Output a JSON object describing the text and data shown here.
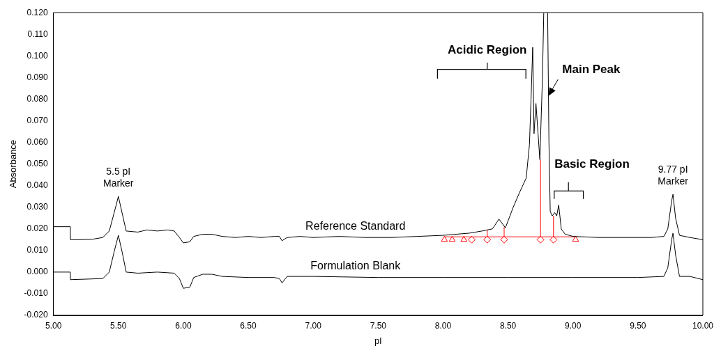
{
  "chart_data": {
    "type": "line",
    "xlabel": "pI",
    "ylabel": "Absorbance",
    "xlim": [
      5.0,
      10.0
    ],
    "xticks": [
      {
        "value": 5,
        "label": "5.00"
      },
      {
        "value": 5.5,
        "label": "5.50"
      },
      {
        "value": 6,
        "label": "6.00"
      },
      {
        "value": 6.5,
        "label": "6.50"
      },
      {
        "value": 7,
        "label": "7.00"
      },
      {
        "value": 7.5,
        "label": "7.50"
      },
      {
        "value": 8,
        "label": "8.00"
      },
      {
        "value": 8.5,
        "label": "8.50"
      },
      {
        "value": 9,
        "label": "9.00"
      },
      {
        "value": 9.5,
        "label": "9.50"
      },
      {
        "value": 10,
        "label": "10.00"
      }
    ],
    "ylim": [
      -0.02,
      0.12
    ],
    "yticks": [
      {
        "value": -0.02,
        "label": "-0.020"
      },
      {
        "value": -0.01,
        "label": "-0.010"
      },
      {
        "value": 0,
        "label": "0.000"
      },
      {
        "value": 0.01,
        "label": "0.010"
      },
      {
        "value": 0.02,
        "label": "0.020"
      },
      {
        "value": 0.03,
        "label": "0.030"
      },
      {
        "value": 0.04,
        "label": "0.040"
      },
      {
        "value": 0.05,
        "label": "0.050"
      },
      {
        "value": 0.06,
        "label": "0.060"
      },
      {
        "value": 0.07,
        "label": "0.070"
      },
      {
        "value": 0.08,
        "label": "0.080"
      },
      {
        "value": 0.09,
        "label": "0.090"
      },
      {
        "value": 0.1,
        "label": "0.100"
      },
      {
        "value": 0.11,
        "label": "0.110"
      },
      {
        "value": 0.12,
        "label": "0.120"
      }
    ],
    "grid": false,
    "legend": false,
    "series": [
      {
        "name": "Reference Standard",
        "type": "line",
        "color": "#000000",
        "marker": "none",
        "x": [
          5.0,
          5.13,
          5.131,
          5.2,
          5.3,
          5.38,
          5.43,
          5.47,
          5.5,
          5.53,
          5.56,
          5.65,
          5.72,
          5.8,
          5.88,
          5.93,
          5.97,
          6.0,
          6.05,
          6.08,
          6.15,
          6.22,
          6.3,
          6.4,
          6.5,
          6.6,
          6.7,
          6.74,
          6.76,
          6.8,
          6.9,
          7.0,
          7.2,
          7.4,
          7.6,
          7.8,
          8.0,
          8.1,
          8.2,
          8.3,
          8.38,
          8.43,
          8.48,
          8.54,
          8.59,
          8.64,
          8.665,
          8.68,
          8.69,
          8.7,
          8.715,
          8.745,
          8.765,
          8.775,
          8.79,
          8.805,
          8.815,
          8.825,
          8.84,
          8.86,
          8.875,
          8.89,
          8.91,
          8.94,
          9.0,
          9.2,
          9.4,
          9.6,
          9.7,
          9.73,
          9.76,
          9.77,
          9.79,
          9.82,
          9.9,
          10.0
        ],
        "values": [
          0.021,
          0.021,
          0.015,
          0.015,
          0.0152,
          0.016,
          0.019,
          0.028,
          0.035,
          0.027,
          0.019,
          0.0185,
          0.0195,
          0.019,
          0.0195,
          0.019,
          0.016,
          0.0135,
          0.014,
          0.0165,
          0.0175,
          0.0175,
          0.0165,
          0.016,
          0.0165,
          0.016,
          0.0165,
          0.0165,
          0.0145,
          0.016,
          0.0165,
          0.016,
          0.0165,
          0.016,
          0.016,
          0.0165,
          0.017,
          0.0175,
          0.018,
          0.019,
          0.02,
          0.0245,
          0.0205,
          0.03,
          0.037,
          0.0435,
          0.059,
          0.085,
          0.104,
          0.064,
          0.078,
          0.052,
          0.09,
          0.12,
          null,
          0.12,
          0.06,
          0.028,
          0.026,
          0.0275,
          0.026,
          0.031,
          0.02,
          0.0175,
          0.0165,
          0.016,
          0.016,
          0.016,
          0.0165,
          0.02,
          0.033,
          0.036,
          0.025,
          0.017,
          0.016,
          0.015
        ]
      },
      {
        "name": "Formulation Blank",
        "type": "line",
        "color": "#000000",
        "marker": "none",
        "x": [
          5.0,
          5.13,
          5.131,
          5.38,
          5.43,
          5.47,
          5.5,
          5.53,
          5.56,
          5.65,
          5.8,
          5.93,
          5.97,
          6.0,
          6.05,
          6.08,
          6.15,
          6.22,
          6.3,
          6.5,
          6.7,
          6.74,
          6.76,
          6.8,
          7.0,
          7.5,
          8.0,
          8.5,
          9.0,
          9.5,
          9.7,
          9.73,
          9.76,
          9.77,
          9.79,
          9.82,
          9.9,
          10.0
        ],
        "values": [
          0.0,
          0.0,
          -0.0035,
          -0.003,
          0.0,
          0.01,
          0.017,
          0.009,
          0.0,
          -0.0005,
          0.0,
          -0.0005,
          -0.003,
          -0.0075,
          -0.007,
          -0.0025,
          -0.001,
          -0.001,
          -0.002,
          -0.0025,
          -0.0025,
          -0.003,
          -0.005,
          -0.002,
          -0.002,
          -0.0025,
          -0.0025,
          -0.0025,
          -0.0025,
          -0.0025,
          -0.002,
          0.002,
          0.015,
          0.018,
          0.008,
          -0.002,
          -0.002,
          -0.0035
        ]
      },
      {
        "type": "line",
        "color": "#ff0000",
        "marker": "none",
        "x": [
          8.01,
          9.02
        ],
        "values": [
          0.0163,
          0.0163
        ]
      },
      {
        "type": "line",
        "color": "#ff0000",
        "marker": "none",
        "x": [
          8.34,
          8.34
        ],
        "values": [
          0.0163,
          0.0195
        ]
      },
      {
        "type": "line",
        "color": "#ff0000",
        "marker": "none",
        "x": [
          8.47,
          8.47
        ],
        "values": [
          0.0163,
          0.021
        ]
      },
      {
        "type": "line",
        "color": "#ff0000",
        "marker": "none",
        "x": [
          8.75,
          8.75
        ],
        "values": [
          0.0163,
          0.052
        ]
      },
      {
        "type": "line",
        "color": "#ff0000",
        "marker": "none",
        "x": [
          8.85,
          8.85
        ],
        "values": [
          0.0163,
          0.026
        ]
      },
      {
        "type": "scatter",
        "color": "#ff0000",
        "marker": "triangle",
        "x": [
          8.01,
          8.07,
          8.16,
          9.02
        ],
        "values": [
          0.015,
          0.015,
          0.015,
          0.015
        ]
      },
      {
        "type": "scatter",
        "color": "#ff0000",
        "marker": "diamond",
        "x": [
          8.22,
          8.34,
          8.47,
          8.75,
          8.85
        ],
        "values": [
          0.015,
          0.015,
          0.015,
          0.015,
          0.015
        ]
      }
    ],
    "annotations": [
      {
        "text": "5.5 pI Marker",
        "x": 5.5,
        "y": 0.035
      },
      {
        "text": "9.77 pI Marker",
        "x": 9.77,
        "y": 0.036
      },
      "Acidic Region",
      {
        "text": "Main Peak",
        "x": 8.81,
        "y": 0.0814
      },
      "Basic Region"
    ]
  }
}
